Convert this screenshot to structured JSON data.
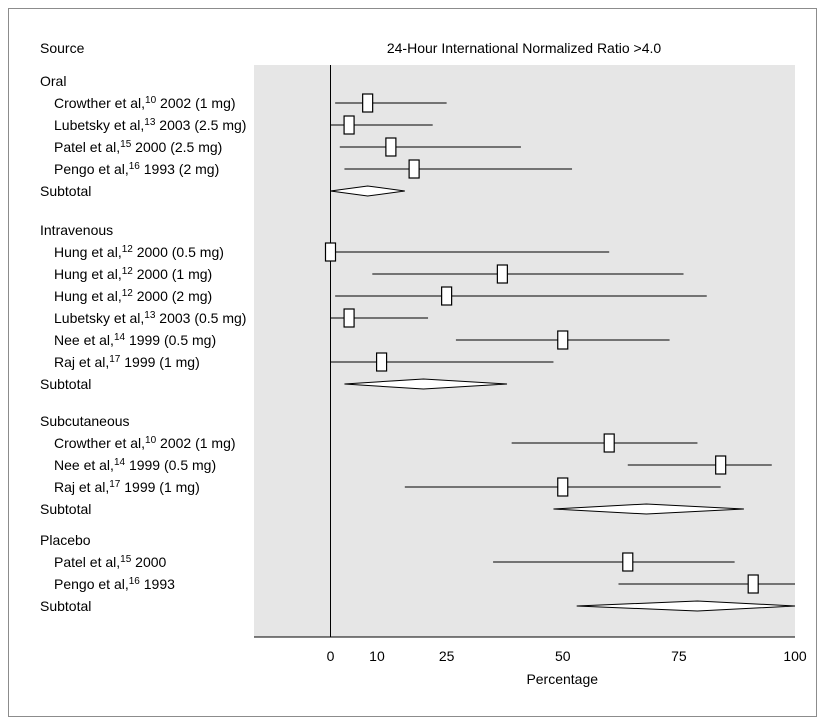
{
  "chart_data": {
    "type": "forest",
    "title": "24-Hour International Normalized Ratio >4.0",
    "source_header": "Source",
    "xlabel": "Percentage",
    "xlim": [
      0,
      100
    ],
    "x_ticks": [
      0,
      10,
      25,
      50,
      75,
      100
    ],
    "groups": [
      {
        "name": "Oral",
        "studies": [
          {
            "author": "Crowther et al,",
            "ref": "10",
            "detail": "2002 (1 mg)",
            "estimate": 8,
            "ci": [
              1,
              25
            ]
          },
          {
            "author": "Lubetsky et al,",
            "ref": "13",
            "detail": "2003 (2.5 mg)",
            "estimate": 4,
            "ci": [
              0,
              22
            ]
          },
          {
            "author": "Patel et al,",
            "ref": "15",
            "detail": "2000 (2.5 mg)",
            "estimate": 13,
            "ci": [
              2,
              41
            ]
          },
          {
            "author": "Pengo et al,",
            "ref": "16",
            "detail": "1993 (2 mg)",
            "estimate": 18,
            "ci": [
              3,
              52
            ]
          }
        ],
        "subtotal": {
          "label": "Subtotal",
          "estimate": 8,
          "ci": [
            0,
            16
          ]
        }
      },
      {
        "name": "Intravenous",
        "studies": [
          {
            "author": "Hung et al,",
            "ref": "12",
            "detail": "2000 (0.5 mg)",
            "estimate": 0,
            "ci": [
              0,
              60
            ]
          },
          {
            "author": "Hung et al,",
            "ref": "12",
            "detail": "2000 (1 mg)",
            "estimate": 37,
            "ci": [
              9,
              76
            ]
          },
          {
            "author": "Hung et al,",
            "ref": "12",
            "detail": "2000 (2 mg)",
            "estimate": 25,
            "ci": [
              1,
              81
            ]
          },
          {
            "author": "Lubetsky et al,",
            "ref": "13",
            "detail": "2003 (0.5 mg)",
            "estimate": 4,
            "ci": [
              0,
              21
            ]
          },
          {
            "author": "Nee et al,",
            "ref": "14",
            "detail": "1999 (0.5 mg)",
            "estimate": 50,
            "ci": [
              27,
              73
            ]
          },
          {
            "author": "Raj et al,",
            "ref": "17",
            "detail": "1999 (1 mg)",
            "estimate": 11,
            "ci": [
              0,
              48
            ]
          }
        ],
        "subtotal": {
          "label": "Subtotal",
          "estimate": 20,
          "ci": [
            3,
            38
          ]
        }
      },
      {
        "name": "Subcutaneous",
        "studies": [
          {
            "author": "Crowther et al,",
            "ref": "10",
            "detail": "2002 (1 mg)",
            "estimate": 60,
            "ci": [
              39,
              79
            ]
          },
          {
            "author": "Nee et al,",
            "ref": "14",
            "detail": "1999 (0.5 mg)",
            "estimate": 84,
            "ci": [
              64,
              95
            ]
          },
          {
            "author": "Raj et al,",
            "ref": "17",
            "detail": "1999 (1 mg)",
            "estimate": 50,
            "ci": [
              16,
              84
            ]
          }
        ],
        "subtotal": {
          "label": "Subtotal",
          "estimate": 68,
          "ci": [
            48,
            89
          ]
        }
      },
      {
        "name": "Placebo",
        "studies": [
          {
            "author": "Patel et al,",
            "ref": "15",
            "detail": "2000",
            "estimate": 64,
            "ci": [
              35,
              87
            ]
          },
          {
            "author": "Pengo et al,",
            "ref": "16",
            "detail": "1993",
            "estimate": 91,
            "ci": [
              62,
              100
            ]
          }
        ],
        "subtotal": {
          "label": "Subtotal",
          "estimate": 79,
          "ci": [
            53,
            100
          ]
        }
      }
    ],
    "colors": {
      "plot_background": "#e6e6e6",
      "line": "#000000",
      "marker_fill": "#ffffff",
      "frame": "#8c8c8c"
    }
  }
}
